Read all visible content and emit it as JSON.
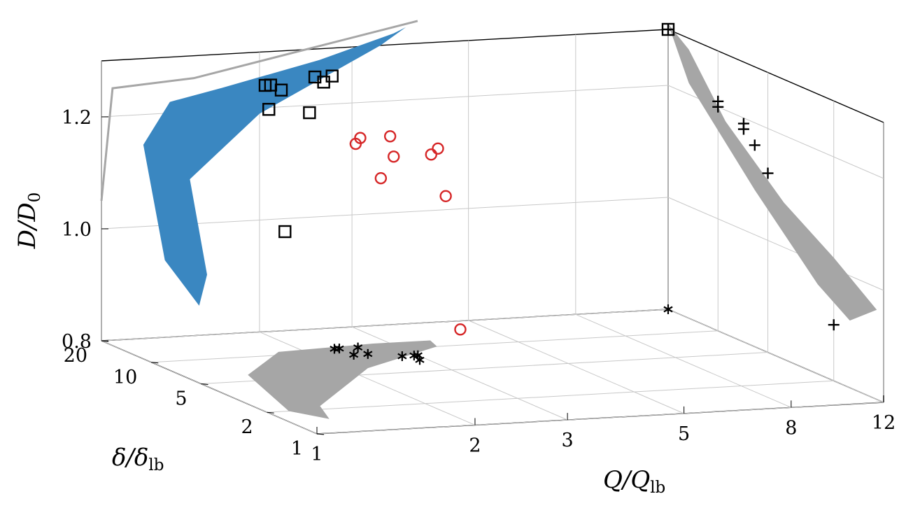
{
  "chart_data": {
    "type": "scatter",
    "dimensions": 3,
    "xlabel": {
      "main": "Q/Q",
      "sub": "lb"
    },
    "ylabel": {
      "main": "δ/δ",
      "sub": "lb"
    },
    "zlabel": {
      "main": "D/D",
      "sub": "0"
    },
    "x_scale": "log",
    "y_scale": "log",
    "x_ticks": [
      "1",
      "2",
      "3",
      "5",
      "8",
      "12"
    ],
    "y_ticks": [
      "1",
      "2",
      "5",
      "10",
      "20"
    ],
    "z_ticks": [
      "0.8",
      "1.0",
      "1.2"
    ],
    "xlim": [
      1,
      12
    ],
    "ylim": [
      1,
      20
    ],
    "zlim": [
      0.8,
      1.3
    ],
    "grid": true,
    "colors": {
      "surface": "#3a87c1",
      "projection": "#a6a6a6",
      "circles": "#d62728",
      "markers": "#000000",
      "grid": "#c8c8c8"
    },
    "series": [
      {
        "marker": "square",
        "color": "#000000",
        "points": [
          {
            "x": 2.05,
            "y": 20,
            "z": 1.24
          },
          {
            "x": 2.1,
            "y": 20,
            "z": 1.24
          },
          {
            "x": 2.2,
            "y": 20,
            "z": 1.23
          },
          {
            "x": 2.55,
            "y": 20,
            "z": 1.25
          },
          {
            "x": 2.65,
            "y": 20,
            "z": 1.24
          },
          {
            "x": 2.75,
            "y": 20,
            "z": 1.25
          },
          {
            "x": 2.05,
            "y": 19,
            "z": 1.2
          },
          {
            "x": 2.45,
            "y": 19,
            "z": 1.19
          },
          {
            "x": 2.2,
            "y": 19,
            "z": 0.98
          },
          {
            "x": 12,
            "y": 20,
            "z": 1.3
          }
        ]
      },
      {
        "marker": "circle",
        "color": "#d62728",
        "points": [
          {
            "x": 2.45,
            "y": 10,
            "z": 1.17
          },
          {
            "x": 2.5,
            "y": 10,
            "z": 1.18
          },
          {
            "x": 2.55,
            "y": 8,
            "z": 1.12
          },
          {
            "x": 2.8,
            "y": 9,
            "z": 1.15
          },
          {
            "x": 2.85,
            "y": 10,
            "z": 1.18
          },
          {
            "x": 3.25,
            "y": 7,
            "z": 1.09
          },
          {
            "x": 3.3,
            "y": 9,
            "z": 1.15
          },
          {
            "x": 3.4,
            "y": 9,
            "z": 1.16
          },
          {
            "x": 3.3,
            "y": 6,
            "z": 0.86
          }
        ]
      },
      {
        "marker": "plus",
        "color": "#000000",
        "points": [
          {
            "x": 12,
            "y": 20,
            "z": 1.3
          },
          {
            "x": 12,
            "y": 10,
            "z": 1.2
          },
          {
            "x": 12,
            "y": 10,
            "z": 1.21
          },
          {
            "x": 12,
            "y": 7,
            "z": 1.18
          },
          {
            "x": 12,
            "y": 7,
            "z": 1.19
          },
          {
            "x": 12,
            "y": 6,
            "z": 1.16
          },
          {
            "x": 12,
            "y": 5,
            "z": 1.12
          },
          {
            "x": 12,
            "y": 2,
            "z": 0.9
          }
        ]
      },
      {
        "marker": "asterisk",
        "color": "#000000",
        "points": [
          {
            "x": 2.3,
            "y": 11,
            "z": 0.8
          },
          {
            "x": 2.35,
            "y": 11,
            "z": 0.8
          },
          {
            "x": 2.35,
            "y": 9,
            "z": 0.8
          },
          {
            "x": 2.5,
            "y": 9,
            "z": 0.8
          },
          {
            "x": 2.55,
            "y": 11,
            "z": 0.8
          },
          {
            "x": 2.8,
            "y": 8,
            "z": 0.8
          },
          {
            "x": 2.95,
            "y": 8,
            "z": 0.8
          },
          {
            "x": 3.0,
            "y": 8,
            "z": 0.8
          },
          {
            "x": 2.9,
            "y": 7,
            "z": 0.8
          },
          {
            "x": 12,
            "y": 20,
            "z": 0.8
          }
        ]
      }
    ]
  }
}
